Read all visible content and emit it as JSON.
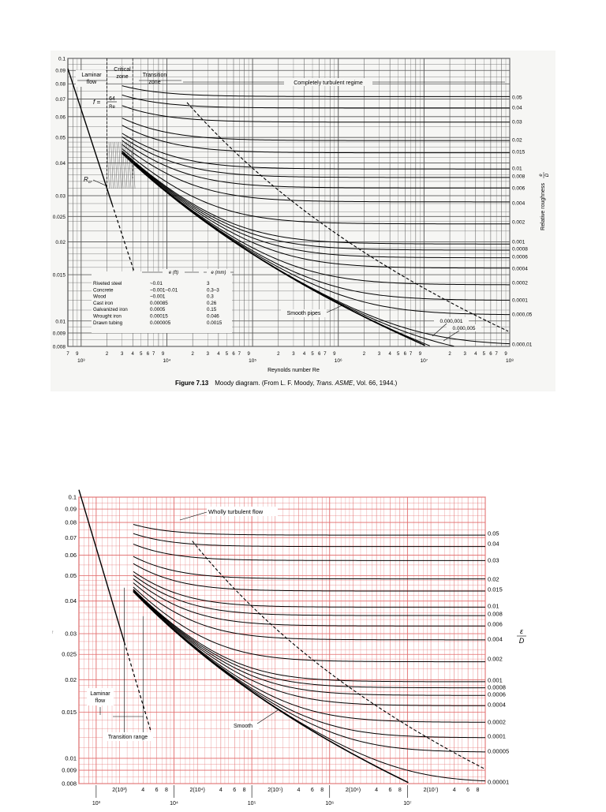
{
  "figure1": {
    "caption_label": "Figure 7.13",
    "caption_text": "Moody diagram. (From L. F. Moody, ",
    "caption_journal": "Trans. ASME",
    "caption_tail": ", Vol. 66, 1944.)",
    "zone_laminar_1": "Laminar",
    "zone_laminar_2": "flow",
    "zone_critical_1": "Critical",
    "zone_critical_2": "zone",
    "zone_transition_1": "Transition",
    "zone_transition_2": "zone",
    "zone_turbulent": "Completely turbulent regime",
    "laminar_eq_f": "f =",
    "laminar_eq_num": "64",
    "laminar_eq_den": "Re",
    "rcr_label": "R",
    "rcr_sub": "cr",
    "smooth_label": "Smooth pipes",
    "small_eps_1": "0.000,001",
    "small_eps_2": "0.000,005",
    "right_axis_label": "Relative roughness",
    "right_axis_frac_num": "e",
    "right_axis_frac_den": "D",
    "x_axis_label": "Reynolds number Re",
    "materials": {
      "header_ft": "e (ft)",
      "header_mm": "e (mm)",
      "rows": [
        {
          "name": "Riveted steel",
          "ft": "~0.01",
          "mm": "3"
        },
        {
          "name": "Concrete",
          "ft": "~0.001–0.01",
          "mm": "0.3–3"
        },
        {
          "name": "Wood",
          "ft": "~0.001",
          "mm": "0.3"
        },
        {
          "name": "Cast iron",
          "ft": "0.00085",
          "mm": "0.26"
        },
        {
          "name": "Galvanized iron",
          "ft": "0.0005",
          "mm": "0.15"
        },
        {
          "name": "Wrought iron",
          "ft": "0.00015",
          "mm": "0.046"
        },
        {
          "name": "Drawn tubing",
          "ft": "0.000005",
          "mm": "0.0015"
        }
      ]
    },
    "x_minor_left": [
      "7",
      "9"
    ],
    "x_minor_ticks": [
      "2",
      "3",
      "4",
      "5",
      "6",
      "7",
      "9"
    ],
    "x_major_labels": [
      "10³",
      "10⁴",
      "10⁵",
      "10⁶",
      "10⁷",
      "10⁸"
    ]
  },
  "figure2": {
    "turbulent_label": "Wholly turbulent flow",
    "laminar_1": "Laminar",
    "laminar_2": "flow",
    "transition_label": "Transition range",
    "smooth_label": "Smooth",
    "right_frac_num": "ε",
    "right_frac_den": "D",
    "left_stray": "f",
    "x_tick_rows": [
      "2(10³)",
      "4",
      "6",
      "8",
      "2(10⁴)",
      "4",
      "6",
      "8",
      "2(10⁵)",
      "4",
      "6",
      "8",
      "2(10⁶)",
      "4",
      "6",
      "8",
      "2(10⁷)",
      "4",
      "6",
      "8"
    ],
    "x_major_labels": [
      "10³",
      "10⁴",
      "10⁵",
      "10⁶",
      "10⁷"
    ]
  },
  "chart_data": [
    {
      "type": "line",
      "title": "Moody diagram",
      "xlabel": "Reynolds number Re",
      "ylabel": "",
      "ylabel_right": "Relative roughness e/D",
      "x_scale": "log",
      "y_scale": "log",
      "xlim": [
        700,
        100000000
      ],
      "ylim": [
        0.008,
        0.1
      ],
      "y_ticks": [
        "0.1",
        "0.09",
        "0.08",
        "0.07",
        "0.06",
        "0.05",
        "0.04",
        "0.03",
        "0.025",
        "0.02",
        "0.015",
        "0.01",
        "0.009",
        "0.008"
      ],
      "y_tick_values": [
        0.1,
        0.09,
        0.08,
        0.07,
        0.06,
        0.05,
        0.04,
        0.03,
        0.025,
        0.02,
        0.015,
        0.01,
        0.009,
        0.008
      ],
      "roughness_labels": [
        "0.05",
        "0.04",
        "0.03",
        "0.02",
        "0.015",
        "0.01",
        "0.008",
        "0.006",
        "0.004",
        "0.002",
        "0.001",
        "0.0008",
        "0.0006",
        "0.0004",
        "0.0002",
        "0.0001",
        "0.000,05",
        "0.000,01"
      ],
      "roughness_values": [
        0.05,
        0.04,
        0.03,
        0.02,
        0.015,
        0.01,
        0.008,
        0.006,
        0.004,
        0.002,
        0.001,
        0.0008,
        0.0006,
        0.0004,
        0.0002,
        0.0001,
        5e-05,
        1e-05
      ],
      "extra_curves": [
        1e-06,
        5e-06
      ],
      "laminar_x_range": [
        700,
        6000
      ],
      "turbulent_start_re": 3000,
      "grid": true,
      "legend": "none"
    },
    {
      "type": "line",
      "title": "",
      "xlabel": "",
      "ylabel": "",
      "ylabel_right": "ε/D",
      "x_scale": "log",
      "y_scale": "log",
      "xlim": [
        600,
        100000000
      ],
      "ylim": [
        0.008,
        0.1
      ],
      "y_ticks": [
        "0.1",
        "0.09",
        "0.08",
        "0.07",
        "0.06",
        "0.05",
        "0.04",
        "0.03",
        "0.025",
        "0.02",
        "0.015",
        "0.01",
        "0.009",
        "0.008"
      ],
      "y_tick_values": [
        0.1,
        0.09,
        0.08,
        0.07,
        0.06,
        0.05,
        0.04,
        0.03,
        0.025,
        0.02,
        0.015,
        0.01,
        0.009,
        0.008
      ],
      "roughness_labels": [
        "0.05",
        "0.04",
        "0.03",
        "0.02",
        "0.015",
        "0.01",
        "0.008",
        "0.006",
        "0.004",
        "0.002",
        "0.001",
        "0.0008",
        "0.0006",
        "0.0004",
        "0.0002",
        "0.0001",
        "0.00005",
        "0.00001"
      ],
      "roughness_values": [
        0.05,
        0.04,
        0.03,
        0.02,
        0.015,
        0.01,
        0.008,
        0.006,
        0.004,
        0.002,
        0.001,
        0.0008,
        0.0006,
        0.0004,
        0.0002,
        0.0001,
        5e-05,
        1e-05
      ],
      "laminar_x_range": [
        600,
        5000
      ],
      "turbulent_start_re": 3000,
      "grid": true,
      "grid_color": "#e26b6b",
      "legend": "none"
    }
  ]
}
